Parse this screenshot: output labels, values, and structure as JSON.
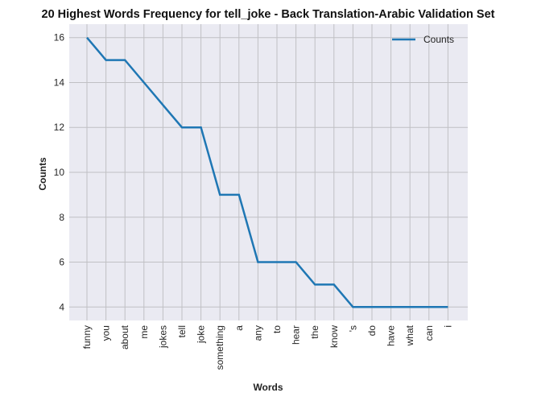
{
  "chart_data": {
    "type": "line",
    "title": "20 Highest Words Frequency for tell_joke - Back Translation-Arabic Validation Set",
    "xlabel": "Words",
    "ylabel": "Counts",
    "categories": [
      "funny",
      "you",
      "about",
      "me",
      "jokes",
      "tell",
      "joke",
      "something",
      "a",
      "any",
      "to",
      "hear",
      "the",
      "know",
      "'s",
      "do",
      "have",
      "what",
      "can",
      "i"
    ],
    "series": [
      {
        "name": "Counts",
        "values": [
          16,
          15,
          15,
          14,
          13,
          12,
          12,
          9,
          9,
          6,
          6,
          6,
          5,
          5,
          4,
          4,
          4,
          4,
          4,
          4
        ]
      }
    ],
    "yticks": [
      4,
      6,
      8,
      10,
      12,
      14,
      16
    ],
    "ylim": [
      3.4,
      16.6
    ],
    "grid": true,
    "legend_position": "top-right",
    "colors": {
      "line": "#1f77b4",
      "plot_background": "#eaeaf2",
      "grid": "#c0c0c4"
    }
  }
}
